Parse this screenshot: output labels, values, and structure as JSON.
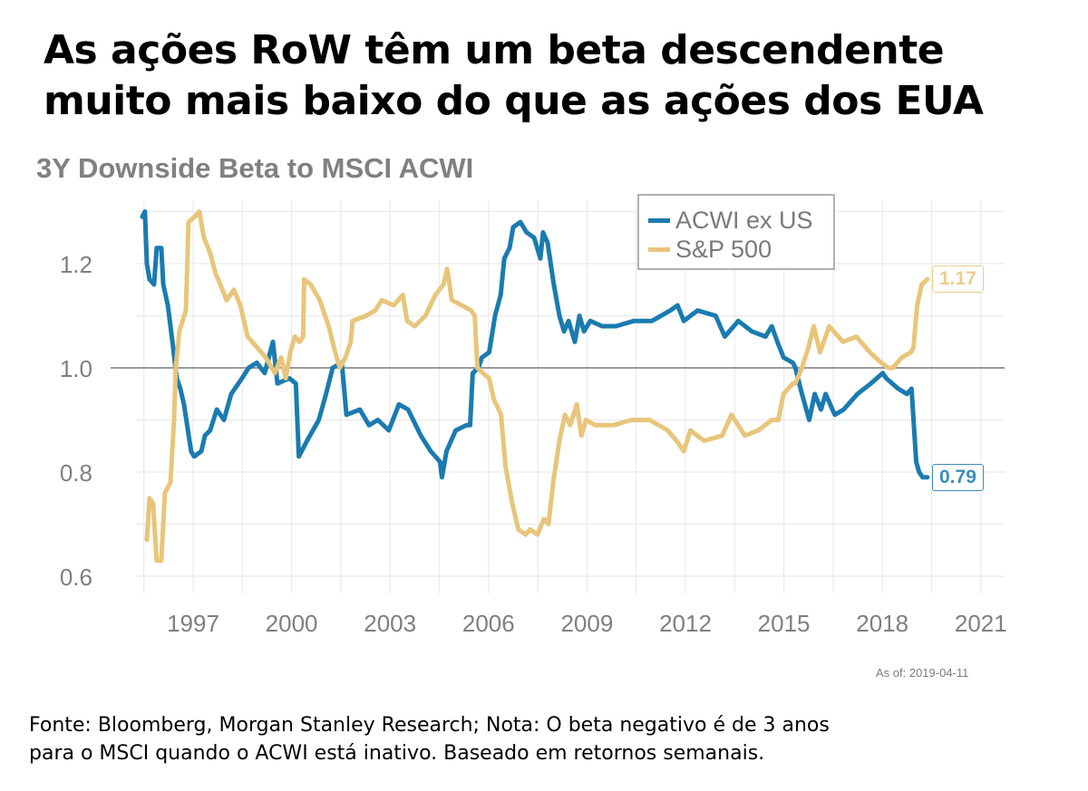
{
  "headline": {
    "line1": "As ações RoW têm um beta descendente",
    "line2": "muito mais baixo do que as ações dos EUA"
  },
  "footnote": {
    "line1": "Fonte: Bloomberg, Morgan Stanley Research; Nota: O beta negativo é de 3 anos",
    "line2": "para o MSCI quando o ACWI está inativo. Baseado em retornos semanais."
  },
  "as_of": "As of:  2019-04-11",
  "colors": {
    "acwi_ex_us": "#1a7bb0",
    "sp500": "#e8c57a",
    "reference_line": "#9a9a9a",
    "grid": "#ebebeb",
    "axis_text": "#7f7f7f"
  },
  "chart_data": {
    "type": "line",
    "title": "3Y Downside Beta to MSCI ACWI",
    "xlabel": "",
    "ylabel": "",
    "xlim": [
      1995.0,
      2021.7
    ],
    "ylim": [
      0.57,
      1.33
    ],
    "x_ticks": [
      1997,
      2000,
      2003,
      2006,
      2009,
      2012,
      2015,
      2018,
      2021
    ],
    "x_tick_labels": [
      "1997",
      "2000",
      "2003",
      "2006",
      "2009",
      "2012",
      "2015",
      "2018",
      "2021"
    ],
    "y_ticks": [
      0.6,
      0.8,
      1.0,
      1.2
    ],
    "y_tick_labels": [
      "0.6",
      "0.8",
      "1.0",
      "1.2"
    ],
    "reference_line": 1.0,
    "grid": true,
    "legend": {
      "position": "top-center-right",
      "entries": [
        "ACWI ex US",
        "S&P 500"
      ]
    },
    "end_labels": [
      {
        "series": "ACWI ex US",
        "text": "0.79",
        "value": 0.79
      },
      {
        "series": "S&P 500",
        "text": "1.17",
        "value": 1.17
      }
    ],
    "series": [
      {
        "name": "ACWI ex US",
        "x": [
          1995.45,
          1995.53,
          1995.59,
          1995.67,
          1995.81,
          1995.89,
          1996.03,
          1996.09,
          1996.23,
          1996.37,
          1996.5,
          1996.61,
          1996.72,
          1996.94,
          1997.03,
          1997.25,
          1997.36,
          1997.52,
          1997.72,
          1997.94,
          1998.16,
          1998.49,
          1998.69,
          1998.94,
          1999.18,
          1999.43,
          1999.57,
          1999.93,
          2000.13,
          2000.22,
          2000.47,
          2000.83,
          2001.05,
          2001.25,
          2001.53,
          2001.67,
          2002.08,
          2002.36,
          2002.63,
          2002.96,
          2003.27,
          2003.55,
          2003.94,
          2004.24,
          2004.52,
          2004.58,
          2004.72,
          2005.0,
          2005.33,
          2005.44,
          2005.52,
          2005.69,
          2005.8,
          2006.02,
          2006.15,
          2006.2,
          2006.37,
          2006.48,
          2006.64,
          2006.75,
          2006.97,
          2007.16,
          2007.39,
          2007.58,
          2007.66,
          2007.8,
          2007.99,
          2008.16,
          2008.3,
          2008.44,
          2008.63,
          2008.77,
          2008.91,
          2009.1,
          2009.46,
          2009.88,
          2010.43,
          2010.98,
          2011.54,
          2011.76,
          2011.95,
          2012.37,
          2012.92,
          2013.2,
          2013.61,
          2014.02,
          2014.44,
          2014.63,
          2014.8,
          2014.99,
          2015.27,
          2015.35,
          2015.55,
          2015.77,
          2015.94,
          2016.13,
          2016.27,
          2016.55,
          2016.82,
          2017.24,
          2017.65,
          2018.01,
          2018.12,
          2018.48,
          2018.75,
          2018.89,
          2019.03,
          2019.12,
          2019.23,
          2019.37
        ],
        "values": [
          1.29,
          1.3,
          1.2,
          1.17,
          1.16,
          1.23,
          1.23,
          1.16,
          1.12,
          1.05,
          0.98,
          0.96,
          0.93,
          0.84,
          0.83,
          0.84,
          0.87,
          0.88,
          0.92,
          0.9,
          0.95,
          0.98,
          1.0,
          1.01,
          0.99,
          1.05,
          0.97,
          0.98,
          0.97,
          0.83,
          0.86,
          0.9,
          0.95,
          1.0,
          1.01,
          0.91,
          0.92,
          0.89,
          0.9,
          0.88,
          0.93,
          0.92,
          0.87,
          0.84,
          0.82,
          0.79,
          0.84,
          0.88,
          0.89,
          0.89,
          0.99,
          1.0,
          1.02,
          1.03,
          1.08,
          1.1,
          1.14,
          1.21,
          1.23,
          1.27,
          1.28,
          1.26,
          1.25,
          1.21,
          1.26,
          1.24,
          1.16,
          1.1,
          1.07,
          1.09,
          1.05,
          1.1,
          1.07,
          1.09,
          1.08,
          1.08,
          1.09,
          1.09,
          1.11,
          1.12,
          1.09,
          1.11,
          1.1,
          1.06,
          1.09,
          1.07,
          1.06,
          1.08,
          1.05,
          1.02,
          1.01,
          1.0,
          0.95,
          0.9,
          0.95,
          0.92,
          0.95,
          0.91,
          0.92,
          0.95,
          0.97,
          0.99,
          0.98,
          0.96,
          0.95,
          0.96,
          0.82,
          0.8,
          0.79,
          0.79
        ]
      },
      {
        "name": "S&P 500",
        "x": [
          1995.59,
          1995.67,
          1995.78,
          1995.89,
          1996.03,
          1996.14,
          1996.31,
          1996.42,
          1996.47,
          1996.58,
          1996.78,
          1996.86,
          1997.05,
          1997.19,
          1997.33,
          1997.52,
          1997.69,
          1997.83,
          1998.02,
          1998.24,
          1998.44,
          1998.66,
          1998.94,
          1999.21,
          1999.49,
          1999.68,
          1999.82,
          1999.96,
          2000.1,
          2000.24,
          2000.35,
          2000.38,
          2000.58,
          2000.86,
          2001.13,
          2001.33,
          2001.47,
          2001.64,
          2001.8,
          2001.86,
          2002.27,
          2002.55,
          2002.75,
          2003.11,
          2003.39,
          2003.52,
          2003.75,
          2004.08,
          2004.38,
          2004.63,
          2004.74,
          2004.88,
          2005.19,
          2005.47,
          2005.58,
          2005.66,
          2005.83,
          2006.02,
          2006.16,
          2006.38,
          2006.52,
          2006.72,
          2006.91,
          2007.13,
          2007.27,
          2007.49,
          2007.69,
          2007.83,
          2007.97,
          2008.16,
          2008.33,
          2008.49,
          2008.69,
          2008.83,
          2008.97,
          2009.25,
          2009.8,
          2010.35,
          2010.91,
          2011.46,
          2011.73,
          2011.95,
          2012.15,
          2012.57,
          2013.12,
          2013.4,
          2013.81,
          2014.22,
          2014.63,
          2014.83,
          2014.99,
          2015.27,
          2015.35,
          2015.55,
          2015.75,
          2015.91,
          2016.1,
          2016.38,
          2016.8,
          2017.21,
          2017.62,
          2017.96,
          2018.18,
          2018.32,
          2018.59,
          2018.87,
          2018.95,
          2019.06,
          2019.2,
          2019.37
        ],
        "values": [
          0.67,
          0.75,
          0.74,
          0.63,
          0.63,
          0.76,
          0.78,
          0.9,
          1.0,
          1.07,
          1.11,
          1.28,
          1.29,
          1.3,
          1.25,
          1.22,
          1.18,
          1.16,
          1.13,
          1.15,
          1.12,
          1.06,
          1.04,
          1.02,
          0.99,
          1.02,
          0.98,
          1.03,
          1.06,
          1.05,
          1.06,
          1.17,
          1.16,
          1.13,
          1.08,
          1.03,
          1.0,
          1.02,
          1.05,
          1.09,
          1.1,
          1.11,
          1.13,
          1.12,
          1.14,
          1.09,
          1.08,
          1.1,
          1.14,
          1.16,
          1.19,
          1.13,
          1.12,
          1.11,
          1.1,
          1.0,
          0.99,
          0.98,
          0.94,
          0.91,
          0.81,
          0.74,
          0.69,
          0.68,
          0.69,
          0.68,
          0.71,
          0.7,
          0.78,
          0.86,
          0.91,
          0.89,
          0.93,
          0.87,
          0.9,
          0.89,
          0.89,
          0.9,
          0.9,
          0.88,
          0.86,
          0.84,
          0.88,
          0.86,
          0.87,
          0.91,
          0.87,
          0.88,
          0.9,
          0.9,
          0.95,
          0.97,
          0.97,
          1.0,
          1.04,
          1.08,
          1.03,
          1.08,
          1.05,
          1.06,
          1.03,
          1.01,
          1.0,
          1.0,
          1.02,
          1.03,
          1.04,
          1.12,
          1.16,
          1.17
        ]
      }
    ]
  }
}
